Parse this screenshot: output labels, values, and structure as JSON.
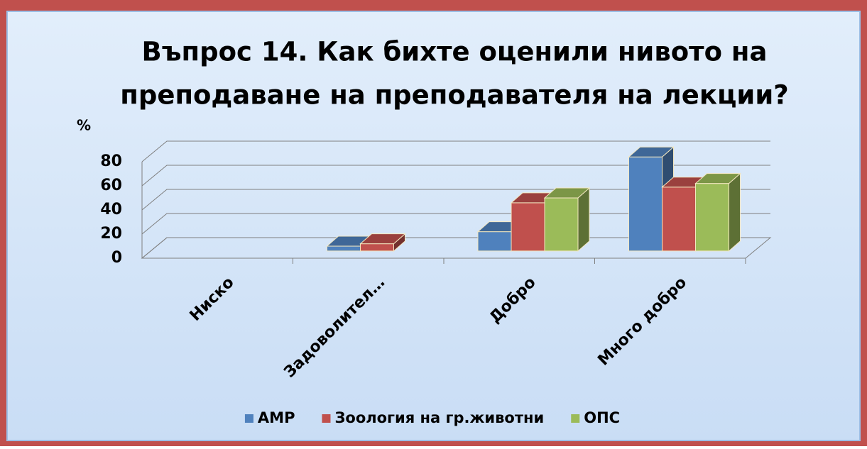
{
  "chart_data": {
    "type": "bar3d",
    "title": [
      "Въпрос 14. Как бихте оценили нивото на",
      "преподаване на преподавателя на лекции?"
    ],
    "y_label": "%",
    "categories": [
      "Ниско",
      "Задоволител…",
      "Добро",
      "Много добро"
    ],
    "series": [
      {
        "name": "АМР",
        "color": "#4f81bd",
        "values": [
          0,
          4,
          16,
          78
        ]
      },
      {
        "name": "Зоология на гр.животни",
        "color": "#c0504d",
        "values": [
          0,
          6,
          40,
          53
        ]
      },
      {
        "name": "ОПС",
        "color": "#9bbb59",
        "values": [
          0,
          0,
          44,
          56
        ]
      }
    ],
    "ylim": [
      0,
      80
    ],
    "yticks": [
      0,
      20,
      40,
      60,
      80
    ],
    "grid": true,
    "legend": "bottom"
  }
}
